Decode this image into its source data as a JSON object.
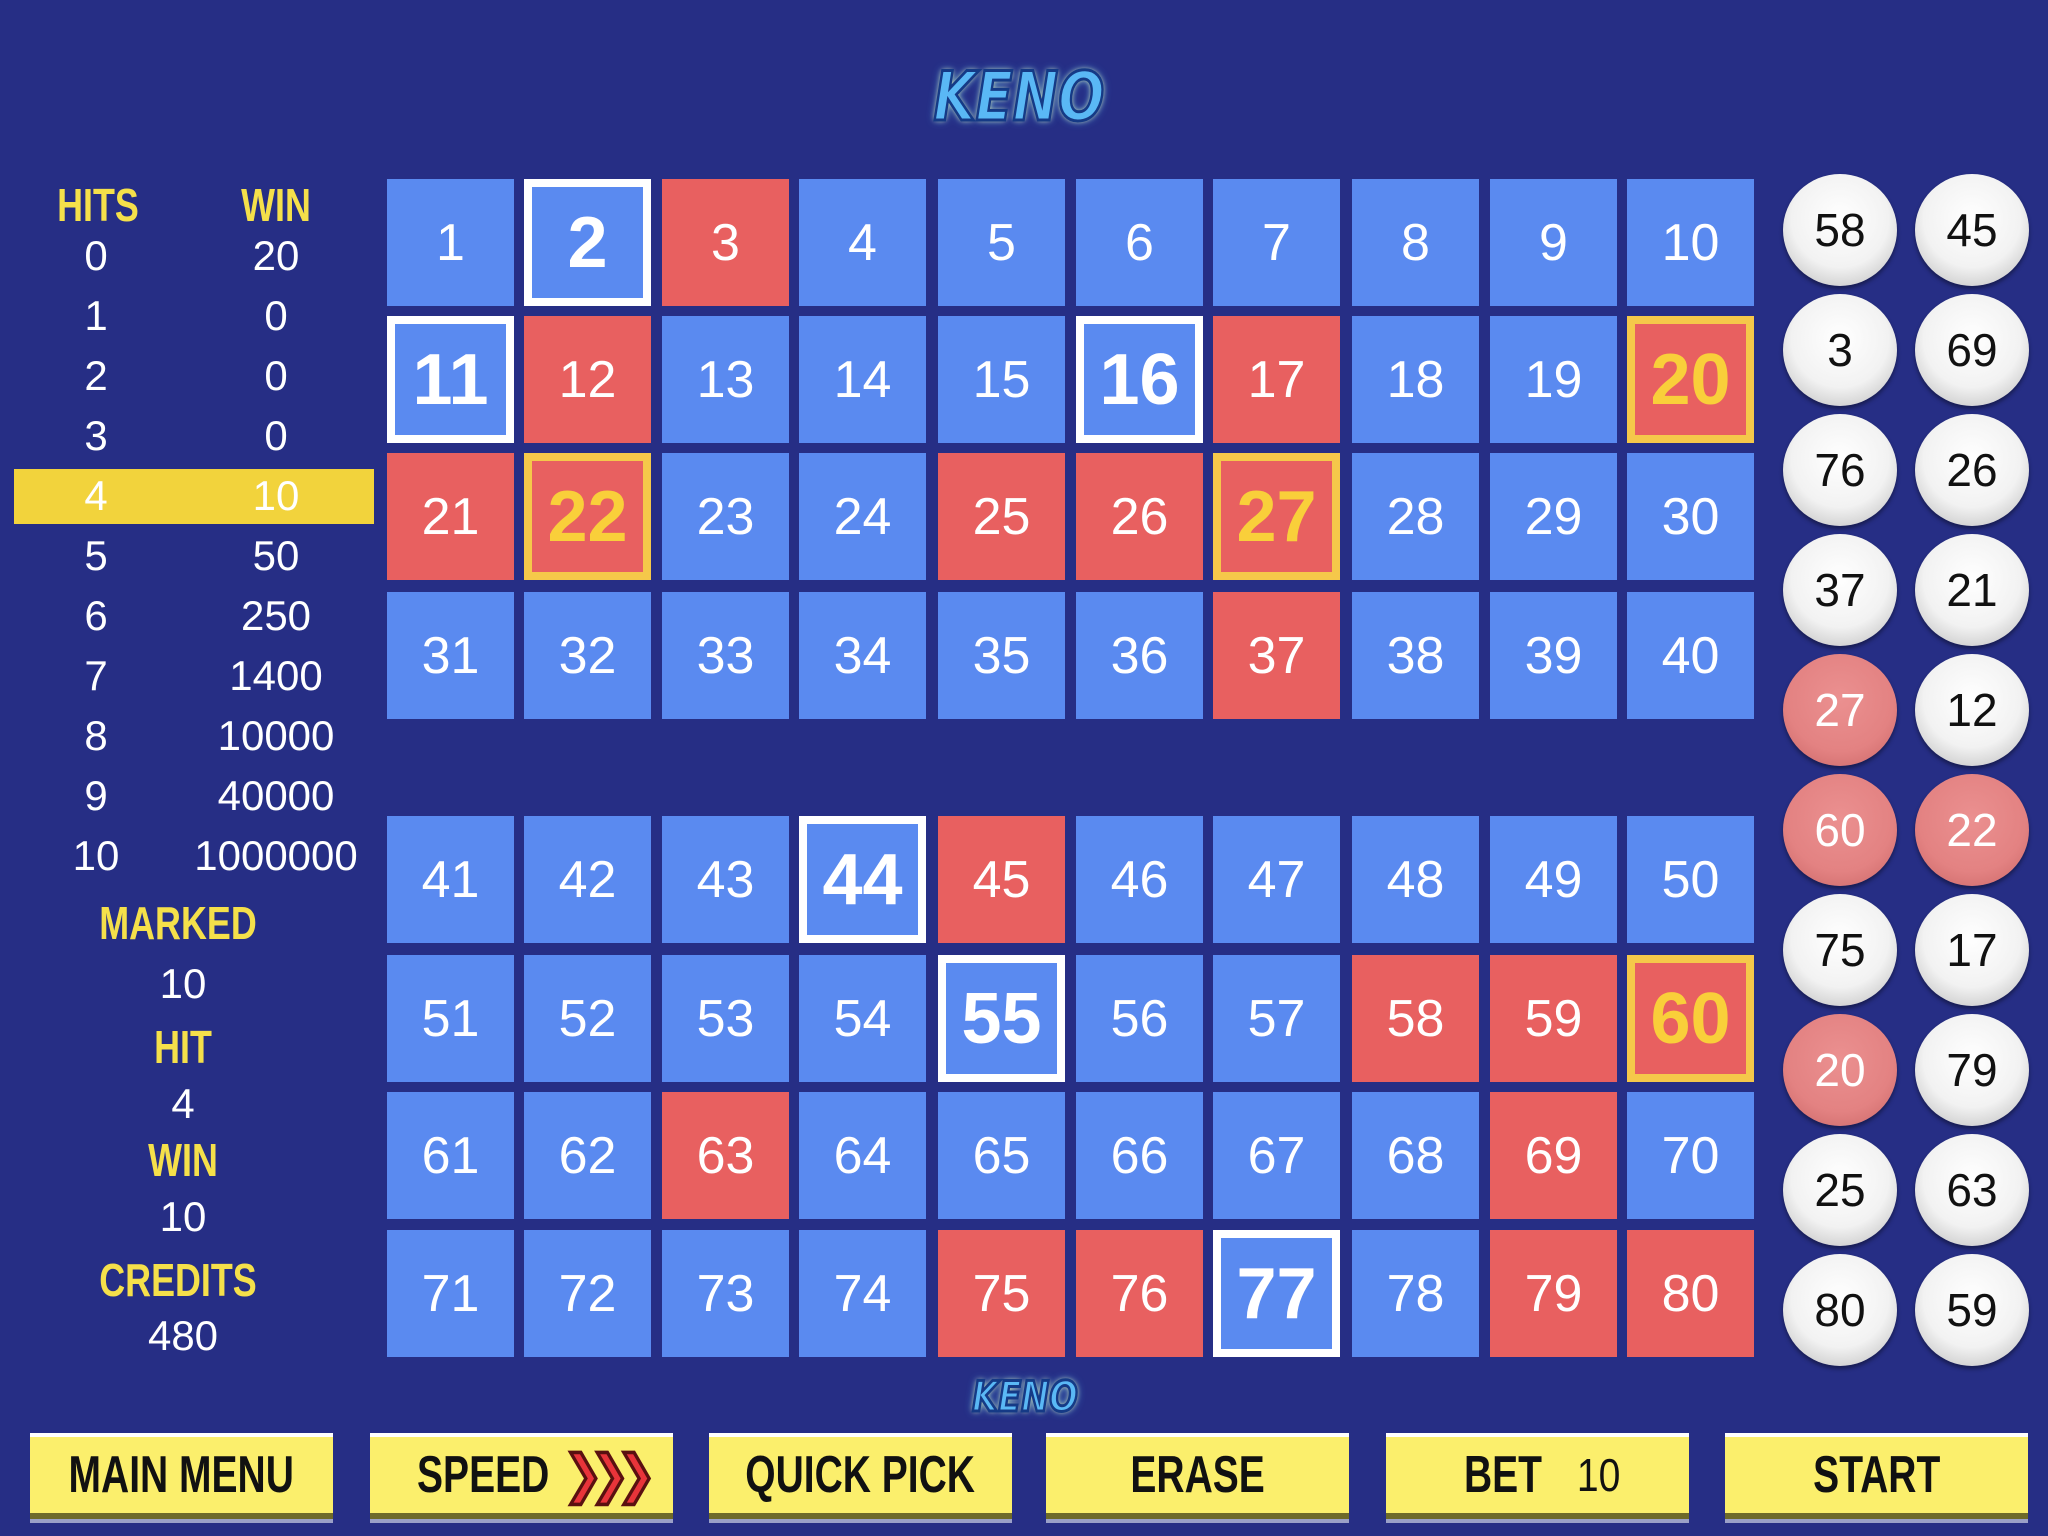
{
  "title": "KENO",
  "footer_logo": "KENO",
  "paytable": {
    "hits_header": "HITS",
    "win_header": "WIN",
    "rows": [
      {
        "hits": "0",
        "win": "20"
      },
      {
        "hits": "1",
        "win": "0"
      },
      {
        "hits": "2",
        "win": "0"
      },
      {
        "hits": "3",
        "win": "0"
      },
      {
        "hits": "4",
        "win": "10",
        "highlighted": true
      },
      {
        "hits": "5",
        "win": "50"
      },
      {
        "hits": "6",
        "win": "250"
      },
      {
        "hits": "7",
        "win": "1400"
      },
      {
        "hits": "8",
        "win": "10000"
      },
      {
        "hits": "9",
        "win": "40000"
      },
      {
        "hits": "10",
        "win": "1000000"
      }
    ]
  },
  "stats": {
    "marked_label": "MARKED",
    "marked": "10",
    "hit_label": "HIT",
    "hit": "4",
    "win_label": "WIN",
    "win": "10",
    "credits_label": "CREDITS",
    "credits": "480"
  },
  "board": {
    "picked": [
      2,
      11,
      16,
      44,
      55,
      77
    ],
    "hit": [
      20,
      22,
      27,
      60
    ],
    "drawn": [
      3,
      12,
      17,
      21,
      25,
      26,
      37,
      45,
      58,
      59,
      63,
      69,
      75,
      76,
      79,
      80
    ]
  },
  "drawn_balls": [
    {
      "n": "58"
    },
    {
      "n": "45"
    },
    {
      "n": "3"
    },
    {
      "n": "69"
    },
    {
      "n": "76"
    },
    {
      "n": "26"
    },
    {
      "n": "37"
    },
    {
      "n": "21"
    },
    {
      "n": "27",
      "hit": true
    },
    {
      "n": "12"
    },
    {
      "n": "60",
      "hit": true
    },
    {
      "n": "22",
      "hit": true
    },
    {
      "n": "75"
    },
    {
      "n": "17"
    },
    {
      "n": "20",
      "hit": true
    },
    {
      "n": "79"
    },
    {
      "n": "25"
    },
    {
      "n": "63"
    },
    {
      "n": "80"
    },
    {
      "n": "59"
    }
  ],
  "buttons": {
    "main_menu": "MAIN MENU",
    "speed": "SPEED",
    "speed_icon": "triple-chevron-right",
    "quick_pick": "QUICK PICK",
    "erase": "ERASE",
    "bet_label": "BET",
    "bet_value": "10",
    "start": "START"
  },
  "colors": {
    "background": "#262e85",
    "cell": "#5a8af0",
    "drawn": "#e86060",
    "hit_border": "#f5c84a",
    "button": "#fbef6c",
    "highlight": "#f2d33c"
  }
}
